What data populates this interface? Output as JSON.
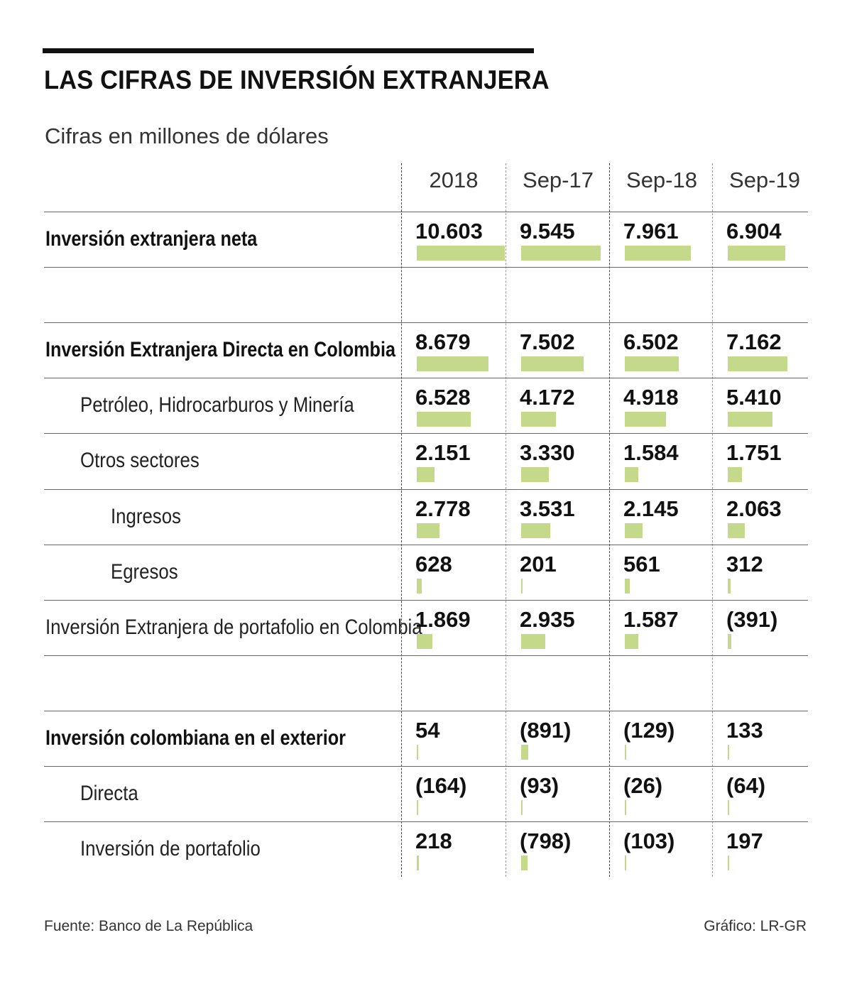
{
  "header": {
    "title": "LAS CIFRAS DE INVERSIÓN EXTRANJERA",
    "subtitle": "Cifras en millones de dólares"
  },
  "chart_data": {
    "type": "table",
    "bar_color": "#c5d98b",
    "columns": [
      "2018",
      "Sep-17",
      "Sep-18",
      "Sep-19"
    ],
    "rows": [
      {
        "label": "Inversión extranjera neta",
        "bold": true,
        "indent": 0,
        "values": [
          10603,
          9545,
          7961,
          6904
        ],
        "display": [
          "10.603",
          "9.545",
          "7.961",
          "6.904"
        ]
      },
      {
        "label": "",
        "spacer": true
      },
      {
        "label": "Inversión Extranjera Directa en Colombia",
        "bold": true,
        "indent": 0,
        "values": [
          8679,
          7502,
          6502,
          7162
        ],
        "display": [
          "8.679",
          "7.502",
          "6.502",
          "7.162"
        ]
      },
      {
        "label": "Petróleo, Hidrocarburos y Minería",
        "bold": false,
        "indent": 1,
        "values": [
          6528,
          4172,
          4918,
          5410
        ],
        "display": [
          "6.528",
          "4.172",
          "4.918",
          "5.410"
        ]
      },
      {
        "label": "Otros sectores",
        "bold": false,
        "indent": 1,
        "values": [
          2151,
          3330,
          1584,
          1751
        ],
        "display": [
          "2.151",
          "3.330",
          "1.584",
          "1.751"
        ]
      },
      {
        "label": "Ingresos",
        "bold": false,
        "indent": 2,
        "values": [
          2778,
          3531,
          2145,
          2063
        ],
        "display": [
          "2.778",
          "3.531",
          "2.145",
          "2.063"
        ]
      },
      {
        "label": "Egresos",
        "bold": false,
        "indent": 2,
        "values": [
          628,
          201,
          561,
          312
        ],
        "display": [
          "628",
          "201",
          "561",
          "312"
        ]
      },
      {
        "label": "Inversión Extranjera de portafolio en Colombia",
        "bold": false,
        "indent": 0,
        "values": [
          1869,
          2935,
          1587,
          -391
        ],
        "display": [
          "1.869",
          "2.935",
          "1.587",
          "(391)"
        ]
      },
      {
        "label": "",
        "spacer": true
      },
      {
        "label": "Inversión colombiana en el exterior",
        "bold": true,
        "indent": 0,
        "values": [
          54,
          -891,
          -129,
          133
        ],
        "display": [
          "54",
          "(891)",
          "(129)",
          "133"
        ]
      },
      {
        "label": "Directa",
        "bold": false,
        "indent": 1,
        "values": [
          -164,
          -93,
          -26,
          -64
        ],
        "display": [
          "(164)",
          "(93)",
          "(26)",
          "(64)"
        ]
      },
      {
        "label": "Inversión de portafolio",
        "bold": false,
        "indent": 1,
        "values": [
          218,
          -798,
          -103,
          197
        ],
        "display": [
          "218",
          "(798)",
          "(103)",
          "197"
        ]
      }
    ]
  },
  "footer": {
    "source": "Fuente: Banco de La República",
    "credit": "Gráfico: LR-GR"
  }
}
